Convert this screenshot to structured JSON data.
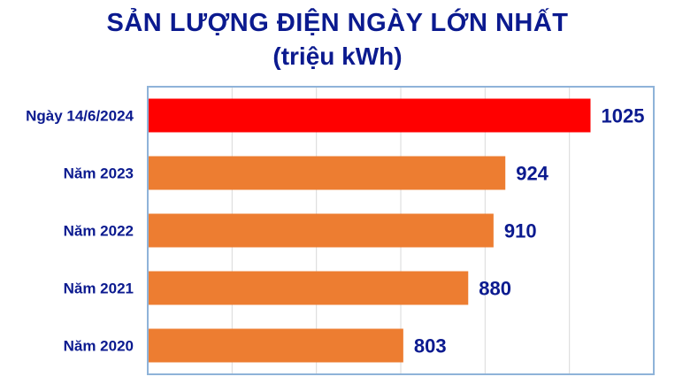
{
  "chart_data": {
    "type": "bar",
    "orientation": "horizontal",
    "title": "SẢN LƯỢNG ĐIỆN NGÀY LỚN NHẤT",
    "subtitle": "(triệu kWh)",
    "categories": [
      "Ngày 14/6/2024",
      "Năm 2023",
      "Năm 2022",
      "Năm 2021",
      "Năm 2020"
    ],
    "values": [
      1025,
      924,
      910,
      880,
      803
    ],
    "bar_colors": [
      "#ff0000",
      "#ed7d31",
      "#ed7d31",
      "#ed7d31",
      "#ed7d31"
    ],
    "xlim": [
      500,
      1100
    ],
    "grid": "vertical gridlines, no tick labels",
    "legend": "none",
    "colors": {
      "title": "#0b1a8f",
      "labels": "#0b1a8f",
      "frame": "#8fb3d9",
      "grid": "#d9d9d9"
    }
  }
}
